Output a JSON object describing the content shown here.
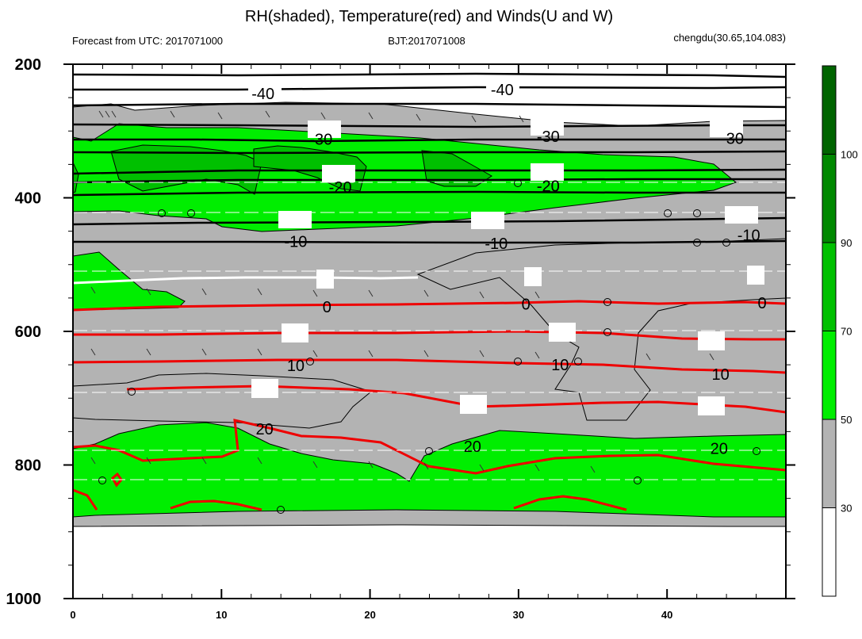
{
  "title": "RH(shaded), Temperature(red) and Winds(U and W)",
  "subtitle_left": "Forecast from UTC: 2017071000",
  "subtitle_center": "BJT:2017071008",
  "subtitle_right": "chengdu(30.65,104.083)",
  "chart_data": {
    "type": "contour",
    "x_ticks": [
      0,
      10,
      20,
      30,
      40
    ],
    "x_range": [
      0,
      48
    ],
    "y_ticks": [
      200,
      400,
      600,
      800,
      1000
    ],
    "y_range": [
      200,
      1000
    ],
    "y_unit_hint": "pressure (hPa), inverted axis",
    "colorbar": {
      "levels": [
        30,
        50,
        70,
        90,
        100
      ],
      "colors": [
        "#ffffff",
        "#b3b3b3",
        "#00ee00",
        "#00c000",
        "#008800",
        "#006400"
      ]
    },
    "temperature_contour_labels": [
      {
        "text": "-40",
        "x": 12.8,
        "p": 244
      },
      {
        "text": "-40",
        "x": 28.9,
        "p": 238
      },
      {
        "text": "-30",
        "x": 16.7,
        "p": 312
      },
      {
        "text": "-30",
        "x": 32.0,
        "p": 308
      },
      {
        "text": "-30",
        "x": 44.4,
        "p": 311
      },
      {
        "text": "-20",
        "x": 18.0,
        "p": 384
      },
      {
        "text": "-20",
        "x": 32.0,
        "p": 382
      },
      {
        "text": "-20",
        "x": 32.0,
        "p": 382
      },
      {
        "text": "-10",
        "x": 15.0,
        "p": 465
      },
      {
        "text": "-10",
        "x": 28.5,
        "p": 468
      },
      {
        "text": "-10",
        "x": 45.5,
        "p": 456
      },
      {
        "text": "0",
        "x": 17.1,
        "p": 563
      },
      {
        "text": "0",
        "x": 30.5,
        "p": 559
      },
      {
        "text": "0",
        "x": 46.4,
        "p": 557
      },
      {
        "text": "10",
        "x": 15.0,
        "p": 651
      },
      {
        "text": "10",
        "x": 32.8,
        "p": 650
      },
      {
        "text": "10",
        "x": 43.6,
        "p": 664
      },
      {
        "text": "20",
        "x": 12.9,
        "p": 746
      },
      {
        "text": "20",
        "x": 26.9,
        "p": 772
      },
      {
        "text": "20",
        "x": 43.5,
        "p": 775
      }
    ]
  }
}
